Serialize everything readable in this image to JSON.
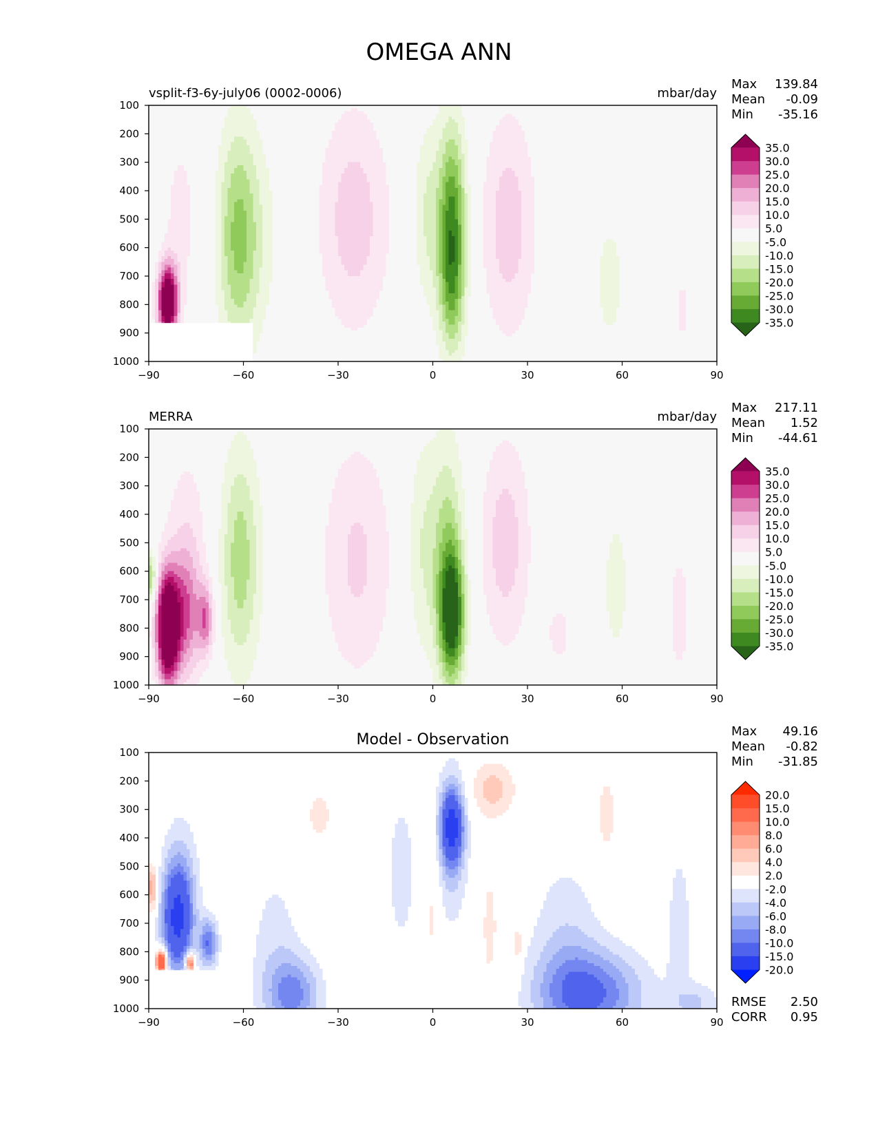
{
  "title": "OMEGA ANN",
  "chart_data": [
    {
      "type": "heatmap",
      "name": "model-panel",
      "title": "",
      "left_label": "vsplit-f3-6y-july06 (0002-0006)",
      "right_label": "mbar/day",
      "xlabel": "",
      "ylabel": "",
      "xlim": [
        -90,
        90
      ],
      "ylim": [
        1000,
        100
      ],
      "xticks": [
        -90,
        -60,
        -30,
        0,
        30,
        60,
        90
      ],
      "yticks": [
        100,
        200,
        300,
        400,
        500,
        600,
        700,
        800,
        900,
        1000
      ],
      "stats": [
        {
          "label": "Max",
          "value": "139.84"
        },
        {
          "label": "Mean",
          "value": "-0.09"
        },
        {
          "label": "Min",
          "value": "-35.16"
        }
      ],
      "colorbar": {
        "levels": [
          "35.0",
          "30.0",
          "25.0",
          "20.0",
          "15.0",
          "10.0",
          "5.0",
          "-5.0",
          "-10.0",
          "-15.0",
          "-20.0",
          "-25.0",
          "-30.0",
          "-35.0"
        ],
        "colors": [
          "#8e0152",
          "#b4106a",
          "#cd3e90",
          "#e17fb7",
          "#efb0d5",
          "#f6d1e7",
          "#fbe7f1",
          "#f7f7f7",
          "#eef6e0",
          "#d8efbd",
          "#b6df89",
          "#8fca5a",
          "#67ab35",
          "#3e8a20",
          "#276419"
        ]
      },
      "features": [
        {
          "lat": 6,
          "p": 550,
          "slat": 3.2,
          "sp": 260,
          "v": -34
        },
        {
          "lat": 6,
          "p": 760,
          "slat": 2.5,
          "sp": 120,
          "v": -6
        },
        {
          "lat": -2,
          "p": 480,
          "slat": 3,
          "sp": 230,
          "v": -10
        },
        {
          "lat": 24,
          "p": 520,
          "slat": 6,
          "sp": 280,
          "v": 13
        },
        {
          "lat": -25,
          "p": 500,
          "slat": 8,
          "sp": 280,
          "v": 13
        },
        {
          "lat": -62,
          "p": 560,
          "slat": 4.5,
          "sp": 280,
          "v": -20
        },
        {
          "lat": -55,
          "p": 560,
          "slat": 5,
          "sp": 260,
          "v": -6
        },
        {
          "lat": 56,
          "p": 720,
          "slat": 5,
          "sp": 260,
          "v": -6
        },
        {
          "lat": -84,
          "p": 790,
          "slat": 2.2,
          "sp": 90,
          "v": 50
        },
        {
          "lat": -80,
          "p": 500,
          "slat": 4,
          "sp": 230,
          "v": 7
        },
        {
          "lat": 79,
          "p": 820,
          "slat": 1.2,
          "sp": 80,
          "v": 8
        }
      ],
      "mask": {
        "lat_max": -57,
        "p_min": 865
      }
    },
    {
      "type": "heatmap",
      "name": "obs-panel",
      "title": "",
      "left_label": "MERRA",
      "right_label": "mbar/day",
      "xlabel": "",
      "ylabel": "",
      "xlim": [
        -90,
        90
      ],
      "ylim": [
        1000,
        100
      ],
      "xticks": [
        -90,
        -60,
        -30,
        0,
        30,
        60,
        90
      ],
      "yticks": [
        100,
        200,
        300,
        400,
        500,
        600,
        700,
        800,
        900,
        1000
      ],
      "stats": [
        {
          "label": "Max",
          "value": "217.11"
        },
        {
          "label": "Mean",
          "value": "1.52"
        },
        {
          "label": "Min",
          "value": "-44.61"
        }
      ],
      "colorbar": {
        "levels": [
          "35.0",
          "30.0",
          "25.0",
          "20.0",
          "15.0",
          "10.0",
          "5.0",
          "-5.0",
          "-10.0",
          "-15.0",
          "-20.0",
          "-25.0",
          "-30.0",
          "-35.0"
        ],
        "colors": [
          "#8e0152",
          "#b4106a",
          "#cd3e90",
          "#e17fb7",
          "#efb0d5",
          "#f6d1e7",
          "#fbe7f1",
          "#f7f7f7",
          "#eef6e0",
          "#d8efbd",
          "#b6df89",
          "#8fca5a",
          "#67ab35",
          "#3e8a20",
          "#276419"
        ]
      },
      "features": [
        {
          "lat": 6,
          "p": 760,
          "slat": 2.8,
          "sp": 160,
          "v": -38
        },
        {
          "lat": 5,
          "p": 500,
          "slat": 3.5,
          "sp": 270,
          "v": -15
        },
        {
          "lat": -3,
          "p": 520,
          "slat": 4,
          "sp": 280,
          "v": -10
        },
        {
          "lat": 23,
          "p": 500,
          "slat": 5.5,
          "sp": 260,
          "v": 13
        },
        {
          "lat": -24,
          "p": 560,
          "slat": 8,
          "sp": 300,
          "v": 11
        },
        {
          "lat": -61,
          "p": 560,
          "slat": 4.5,
          "sp": 280,
          "v": -18
        },
        {
          "lat": 58,
          "p": 650,
          "slat": 3.5,
          "sp": 220,
          "v": -7
        },
        {
          "lat": -84,
          "p": 800,
          "slat": 2.5,
          "sp": 140,
          "v": 55
        },
        {
          "lat": -78,
          "p": 760,
          "slat": 3,
          "sp": 160,
          "v": 20
        },
        {
          "lat": -72,
          "p": 770,
          "slat": 1.8,
          "sp": 90,
          "v": 22
        },
        {
          "lat": -78,
          "p": 500,
          "slat": 5,
          "sp": 250,
          "v": 8
        },
        {
          "lat": -89.5,
          "p": 620,
          "slat": 1.2,
          "sp": 60,
          "v": -22
        },
        {
          "lat": 78,
          "p": 750,
          "slat": 3,
          "sp": 200,
          "v": 7
        },
        {
          "lat": 40,
          "p": 820,
          "slat": 4,
          "sp": 120,
          "v": 6
        }
      ],
      "mask": null
    },
    {
      "type": "heatmap",
      "name": "diff-panel",
      "title": "Model - Observation",
      "left_label": "",
      "right_label": "",
      "xlabel": "",
      "ylabel": "",
      "xlim": [
        -90,
        90
      ],
      "ylim": [
        1000,
        100
      ],
      "xticks": [
        -90,
        -60,
        -30,
        0,
        30,
        60,
        90
      ],
      "yticks": [
        100,
        200,
        300,
        400,
        500,
        600,
        700,
        800,
        900,
        1000
      ],
      "stats": [
        {
          "label": "Max",
          "value": "49.16"
        },
        {
          "label": "Mean",
          "value": "-0.82"
        },
        {
          "label": "Min",
          "value": "-31.85"
        }
      ],
      "extra_stats": [
        {
          "label": "RMSE",
          "value": "2.50"
        },
        {
          "label": "CORR",
          "value": "0.95"
        }
      ],
      "colorbar": {
        "levels": [
          "20.0",
          "15.0",
          "10.0",
          "8.0",
          "6.0",
          "4.0",
          "2.0",
          "-2.0",
          "-4.0",
          "-6.0",
          "-8.0",
          "-10.0",
          "-15.0",
          "-20.0"
        ],
        "colors": [
          "#ff2a00",
          "#ff4d29",
          "#ff6a4d",
          "#ff8c70",
          "#ffab96",
          "#ffcab9",
          "#ffe6de",
          "#ffffff",
          "#dde4fb",
          "#bcc9f8",
          "#98aaf4",
          "#7487f0",
          "#4f63ed",
          "#2a3ff0",
          "#0020ff"
        ]
      },
      "features": [
        {
          "lat": 6,
          "p": 360,
          "slat": 2.5,
          "sp": 90,
          "v": -14
        },
        {
          "lat": 6,
          "p": 420,
          "slat": 3.5,
          "sp": 200,
          "v": -5
        },
        {
          "lat": 19,
          "p": 230,
          "slat": 5,
          "sp": 70,
          "v": 5
        },
        {
          "lat": -36,
          "p": 320,
          "slat": 2.5,
          "sp": 60,
          "v": 3.5
        },
        {
          "lat": 55,
          "p": 320,
          "slat": 2,
          "sp": 100,
          "v": 3.5
        },
        {
          "lat": 0,
          "p": 640,
          "slat": 1.5,
          "sp": 200,
          "v": 2.8
        },
        {
          "lat": 18,
          "p": 720,
          "slat": 1.8,
          "sp": 160,
          "v": 3
        },
        {
          "lat": 27,
          "p": 780,
          "slat": 1,
          "sp": 70,
          "v": 4
        },
        {
          "lat": -10,
          "p": 520,
          "slat": 4,
          "sp": 230,
          "v": -2.8
        },
        {
          "lat": -81,
          "p": 690,
          "slat": 3.5,
          "sp": 130,
          "v": -14
        },
        {
          "lat": -71,
          "p": 770,
          "slat": 2,
          "sp": 60,
          "v": -10
        },
        {
          "lat": -80,
          "p": 560,
          "slat": 4,
          "sp": 180,
          "v": -4
        },
        {
          "lat": -89,
          "p": 580,
          "slat": 1.2,
          "sp": 60,
          "v": 8
        },
        {
          "lat": -86,
          "p": 835,
          "slat": 1.2,
          "sp": 30,
          "v": 18
        },
        {
          "lat": -77,
          "p": 840,
          "slat": 1,
          "sp": 25,
          "v": 14
        },
        {
          "lat": -44,
          "p": 950,
          "slat": 6,
          "sp": 90,
          "v": -8
        },
        {
          "lat": -50,
          "p": 800,
          "slat": 6,
          "sp": 220,
          "v": -3
        },
        {
          "lat": 50,
          "p": 950,
          "slat": 12,
          "sp": 110,
          "v": -10
        },
        {
          "lat": 42,
          "p": 780,
          "slat": 8,
          "sp": 230,
          "v": -3.5
        },
        {
          "lat": 78,
          "p": 700,
          "slat": 3,
          "sp": 220,
          "v": -3
        },
        {
          "lat": 84,
          "p": 980,
          "slat": 5,
          "sp": 50,
          "v": -4
        }
      ],
      "mask": {
        "lat_max": -57,
        "p_min": 865
      }
    }
  ]
}
